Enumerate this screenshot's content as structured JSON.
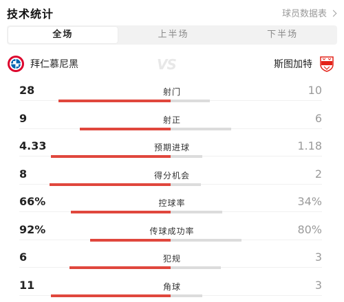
{
  "header": {
    "title": "技术统计",
    "player_stats_link": "球员数据表"
  },
  "tabs": [
    {
      "label": "全场",
      "active": true
    },
    {
      "label": "上半场",
      "active": false
    },
    {
      "label": "下半场",
      "active": false
    }
  ],
  "teams": {
    "home": {
      "name": "拜仁慕尼黑",
      "logo_text": "FCB",
      "color": "#dc052d"
    },
    "away": {
      "name": "斯图加特",
      "logo_text": "VfB",
      "color": "#e32219"
    },
    "vs": "VS"
  },
  "colors": {
    "home_bar": "#e0473d",
    "away_bar": "#dcdcdc"
  },
  "stats": [
    {
      "label": "射门",
      "home": "28",
      "away": "10",
      "home_share": 0.74,
      "away_share": 0.26
    },
    {
      "label": "射正",
      "home": "9",
      "away": "6",
      "home_share": 0.6,
      "away_share": 0.4
    },
    {
      "label": "预期进球",
      "home": "4.33",
      "away": "1.18",
      "home_share": 0.79,
      "away_share": 0.21
    },
    {
      "label": "得分机会",
      "home": "8",
      "away": "2",
      "home_share": 0.8,
      "away_share": 0.2
    },
    {
      "label": "控球率",
      "home": "66%",
      "away": "34%",
      "home_share": 0.66,
      "away_share": 0.34
    },
    {
      "label": "传球成功率",
      "home": "92%",
      "away": "80%",
      "home_share": 0.53,
      "away_share": 0.47
    },
    {
      "label": "犯规",
      "home": "6",
      "away": "3",
      "home_share": 0.67,
      "away_share": 0.33
    },
    {
      "label": "角球",
      "home": "11",
      "away": "3",
      "home_share": 0.79,
      "away_share": 0.21
    }
  ]
}
